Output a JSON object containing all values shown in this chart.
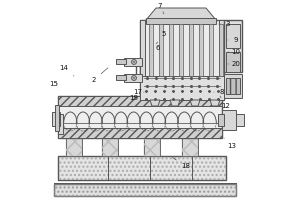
{
  "lc": "#555555",
  "lc2": "#333333",
  "fc_light": "#e8e8e8",
  "fc_mid": "#d8d8d8",
  "fc_dark": "#c8c8c8",
  "lw": 0.7,
  "lw2": 1.0,
  "labels": {
    "2": [
      0.22,
      0.6,
      0.3,
      0.67
    ],
    "3": [
      0.89,
      0.88,
      0.83,
      0.88
    ],
    "5": [
      0.57,
      0.83,
      0.53,
      0.78
    ],
    "6": [
      0.54,
      0.76,
      0.51,
      0.72
    ],
    "7": [
      0.55,
      0.97,
      0.57,
      0.93
    ],
    "8": [
      0.86,
      0.54,
      0.82,
      0.54
    ],
    "9": [
      0.93,
      0.8,
      0.89,
      0.8
    ],
    "10": [
      0.93,
      0.74,
      0.89,
      0.74
    ],
    "12": [
      0.88,
      0.47,
      0.85,
      0.52
    ],
    "13": [
      0.91,
      0.27,
      0.86,
      0.32
    ],
    "14": [
      0.07,
      0.66,
      0.12,
      0.62
    ],
    "15": [
      0.02,
      0.58,
      0.05,
      0.58
    ],
    "17": [
      0.44,
      0.54,
      0.48,
      0.57
    ],
    "18": [
      0.68,
      0.17,
      0.6,
      0.22
    ],
    "19": [
      0.42,
      0.51,
      0.47,
      0.54
    ],
    "20": [
      0.93,
      0.68,
      0.89,
      0.68
    ]
  }
}
